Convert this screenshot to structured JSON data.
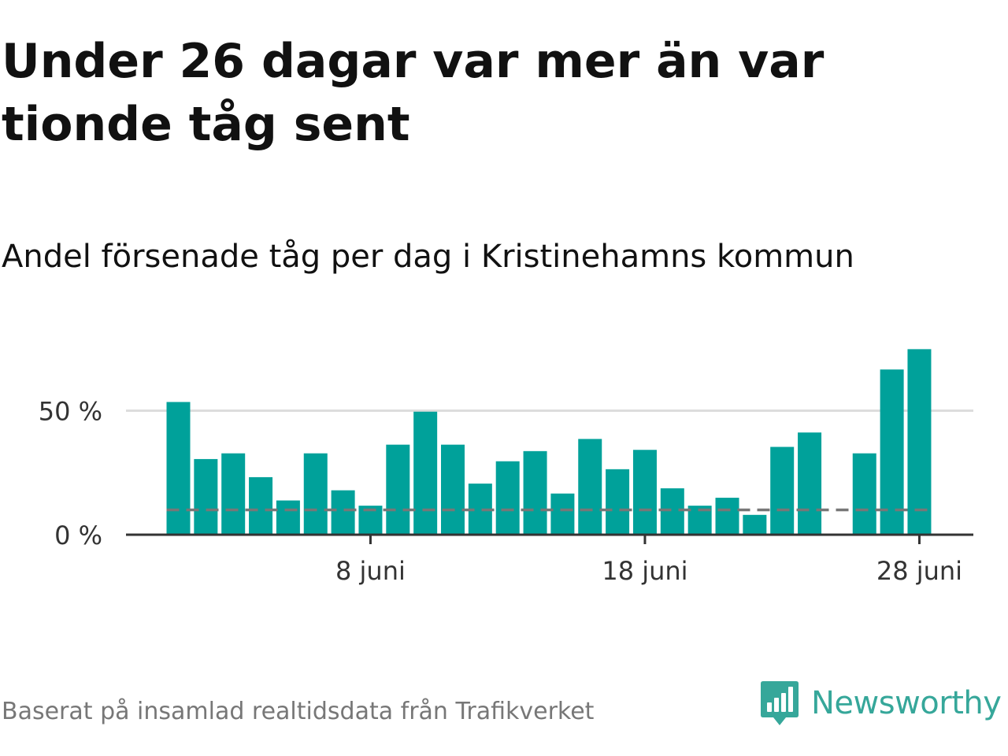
{
  "title": "Under 26 dagar var mer än var tionde tåg sent",
  "subtitle": "Andel försenade tåg per dag i Kristinehamns kommun",
  "source": "Baserat på insamlad realtidsdata från Trafikverket",
  "brand": {
    "name": "Newsworthy",
    "color": "#36a79a",
    "icon": "bar-chart-speech-bubble-icon"
  },
  "colors": {
    "bar": "#00a19a",
    "reference_line": "#777777",
    "gridline": "#dddddd",
    "axis": "#333333"
  },
  "chart_data": {
    "type": "bar",
    "title": "Andel försenade tåg per dag i Kristinehamns kommun",
    "x": [
      "1 juni",
      "2 juni",
      "3 juni",
      "4 juni",
      "5 juni",
      "6 juni",
      "7 juni",
      "8 juni",
      "9 juni",
      "10 juni",
      "11 juni",
      "12 juni",
      "13 juni",
      "14 juni",
      "15 juni",
      "16 juni",
      "17 juni",
      "18 juni",
      "19 juni",
      "20 juni",
      "21 juni",
      "22 juni",
      "23 juni",
      "24 juni",
      "25 juni",
      "26 juni",
      "27 juni",
      "28 juni"
    ],
    "values": [
      53.5,
      30.5,
      32.8,
      23.2,
      13.8,
      32.8,
      17.9,
      11.7,
      36.3,
      49.6,
      36.3,
      20.6,
      29.6,
      33.7,
      16.6,
      38.6,
      26.4,
      34.2,
      18.7,
      11.7,
      14.9,
      8.0,
      35.4,
      41.2,
      null,
      32.8,
      66.6,
      74.8
    ],
    "reference_value": 10,
    "y_ticks": [
      {
        "value": 0,
        "label": "0 %"
      },
      {
        "value": 50,
        "label": "50 %"
      }
    ],
    "x_ticks": [
      {
        "value": "8 juni",
        "label": "8 juni"
      },
      {
        "value": "18 juni",
        "label": "18 juni"
      },
      {
        "value": "28 juni",
        "label": "28 juni"
      }
    ],
    "ylim": [
      0,
      80
    ],
    "grid": true,
    "legend": "none"
  }
}
